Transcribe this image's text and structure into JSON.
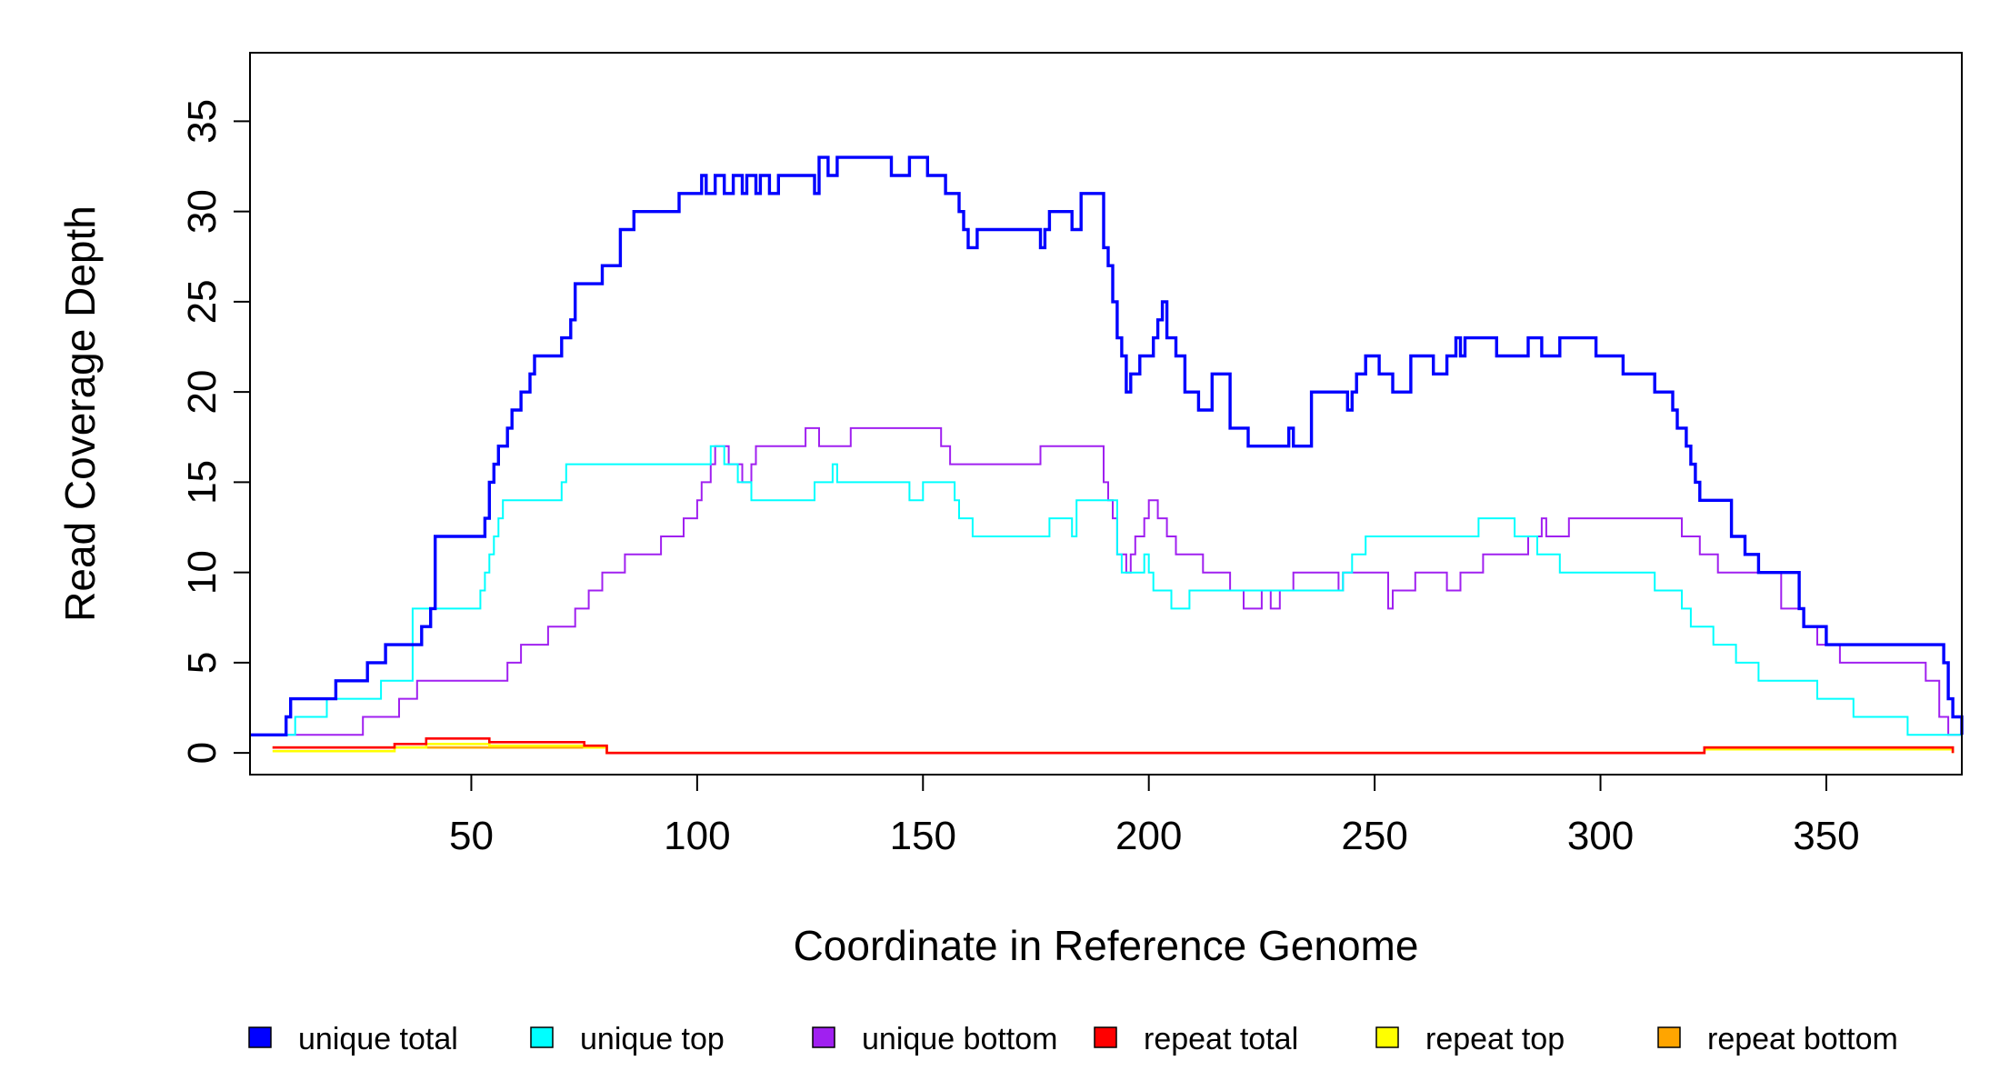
{
  "chart_data": {
    "type": "line",
    "title": "",
    "xlabel": "Coordinate in Reference Genome",
    "ylabel": "Read Coverage Depth",
    "xlim": [
      1,
      380
    ],
    "ylim": [
      0,
      35
    ],
    "x_ticks": [
      50,
      100,
      150,
      200,
      250,
      300,
      350
    ],
    "y_ticks": [
      0,
      5,
      10,
      15,
      20,
      25,
      30,
      35
    ],
    "grid": false,
    "legend_position": "bottom",
    "series": [
      {
        "name": "unique total",
        "color": "#0000ff",
        "step": true,
        "x": [
          1,
          9,
          10,
          20,
          27,
          31,
          39,
          41,
          42,
          53,
          54,
          55,
          56,
          58,
          59,
          61,
          63,
          64,
          70,
          72,
          73,
          79,
          83,
          86,
          96,
          101,
          102,
          104,
          106,
          108,
          110,
          111,
          113,
          114,
          116,
          118,
          126,
          127,
          129,
          131,
          133,
          143,
          147,
          151,
          155,
          158,
          159,
          160,
          162,
          166,
          176,
          177,
          178,
          183,
          185,
          190,
          191,
          192,
          193,
          194,
          195,
          196,
          198,
          201,
          202,
          203,
          204,
          206,
          208,
          211,
          214,
          218,
          222,
          231,
          232,
          236,
          244,
          245,
          246,
          248,
          251,
          254,
          258,
          263,
          266,
          268,
          269,
          270,
          277,
          284,
          287,
          291,
          299,
          305,
          312,
          316,
          317,
          319,
          320,
          321,
          322,
          329,
          332,
          335,
          344,
          345,
          349,
          350,
          359,
          376,
          377,
          378,
          380
        ],
        "y": [
          1,
          2,
          3,
          4,
          5,
          6,
          7,
          8,
          12,
          13,
          15,
          16,
          17,
          18,
          19,
          20,
          21,
          22,
          23,
          24,
          26,
          27,
          29,
          30,
          31,
          32,
          31,
          32,
          31,
          32,
          31,
          32,
          31,
          32,
          31,
          32,
          31,
          33,
          32,
          33,
          33,
          32,
          33,
          32,
          31,
          30,
          29,
          28,
          29,
          29,
          28,
          29,
          30,
          29,
          31,
          28,
          27,
          25,
          23,
          22,
          20,
          21,
          22,
          23,
          24,
          25,
          23,
          22,
          20,
          19,
          21,
          18,
          17,
          18,
          17,
          20,
          19,
          20,
          21,
          22,
          21,
          20,
          22,
          21,
          22,
          23,
          22,
          23,
          22,
          23,
          22,
          23,
          22,
          21,
          20,
          19,
          18,
          17,
          16,
          15,
          14,
          12,
          11,
          10,
          8,
          7,
          7,
          6,
          6,
          5,
          3,
          2,
          1
        ]
      },
      {
        "name": "unique top",
        "color": "#00ffff",
        "step": true,
        "x": [
          1,
          5,
          11,
          18,
          30,
          37,
          38,
          52,
          53,
          54,
          55,
          56,
          57,
          62,
          70,
          71,
          72,
          73,
          75,
          103,
          106,
          109,
          110,
          112,
          121,
          126,
          130,
          131,
          134,
          147,
          150,
          157,
          158,
          161,
          167,
          177,
          178,
          183,
          184,
          193,
          194,
          198,
          199,
          200,
          201,
          203,
          205,
          209,
          215,
          228,
          231,
          243,
          245,
          246,
          248,
          264,
          273,
          281,
          286,
          291,
          300,
          312,
          318,
          320,
          325,
          330,
          335,
          348,
          356,
          368,
          378,
          380
        ],
        "y": [
          1,
          1,
          2,
          3,
          4,
          8,
          8,
          9,
          10,
          11,
          12,
          13,
          14,
          14,
          15,
          16,
          16,
          16,
          16,
          17,
          16,
          15,
          15,
          14,
          14,
          15,
          16,
          15,
          15,
          14,
          15,
          14,
          13,
          12,
          12,
          12,
          13,
          12,
          14,
          11,
          10,
          10,
          11,
          10,
          9,
          9,
          8,
          9,
          9,
          9,
          9,
          10,
          11,
          11,
          12,
          12,
          13,
          12,
          11,
          10,
          10,
          9,
          8,
          7,
          6,
          5,
          4,
          3,
          2,
          1,
          1,
          1
        ]
      },
      {
        "name": "unique bottom",
        "color": "#a020f0",
        "step": true,
        "x": [
          1,
          26,
          34,
          38,
          58,
          61,
          67,
          73,
          76,
          79,
          84,
          92,
          97,
          100,
          101,
          103,
          104,
          107,
          110,
          112,
          113,
          118,
          124,
          127,
          134,
          154,
          156,
          168,
          176,
          181,
          190,
          191,
          192,
          193,
          195,
          196,
          197,
          199,
          200,
          202,
          204,
          206,
          212,
          218,
          221,
          225,
          227,
          229,
          232,
          242,
          243,
          249,
          253,
          254,
          259,
          266,
          269,
          274,
          282,
          284,
          287,
          288,
          290,
          293,
          301,
          318,
          322,
          326,
          340,
          345,
          348,
          353,
          354,
          356,
          372,
          375,
          377,
          380
        ],
        "y": [
          1,
          2,
          3,
          4,
          5,
          6,
          7,
          8,
          9,
          10,
          11,
          12,
          13,
          14,
          15,
          16,
          17,
          16,
          15,
          16,
          17,
          17,
          18,
          17,
          18,
          17,
          16,
          16,
          17,
          17,
          15,
          14,
          13,
          11,
          10,
          11,
          12,
          13,
          14,
          13,
          12,
          11,
          10,
          9,
          8,
          9,
          8,
          9,
          10,
          9,
          10,
          10,
          8,
          9,
          10,
          9,
          10,
          11,
          11,
          12,
          13,
          12,
          12,
          13,
          13,
          12,
          11,
          10,
          8,
          7,
          6,
          5,
          5,
          5,
          4,
          2,
          1,
          1
        ]
      },
      {
        "name": "repeat total",
        "color": "#ff0000",
        "step": true,
        "x": [
          6,
          33,
          40,
          54,
          75,
          80,
          323,
          378
        ],
        "y": [
          0.3,
          0.5,
          0.8,
          0.6,
          0.4,
          0,
          0.3,
          0
        ]
      },
      {
        "name": "repeat top",
        "color": "#ffff00",
        "step": true,
        "x": [
          6,
          33,
          40,
          54,
          75,
          80,
          323,
          378
        ],
        "y": [
          0.1,
          0.3,
          0.5,
          0.4,
          0.3,
          0,
          0.2,
          0
        ]
      },
      {
        "name": "repeat bottom",
        "color": "#ffa500",
        "step": true,
        "x": [
          6,
          33,
          40,
          54,
          75,
          80,
          323,
          378
        ],
        "y": [
          0.3,
          0.3,
          0.3,
          0.3,
          0.3,
          0,
          0.3,
          0
        ]
      }
    ]
  }
}
